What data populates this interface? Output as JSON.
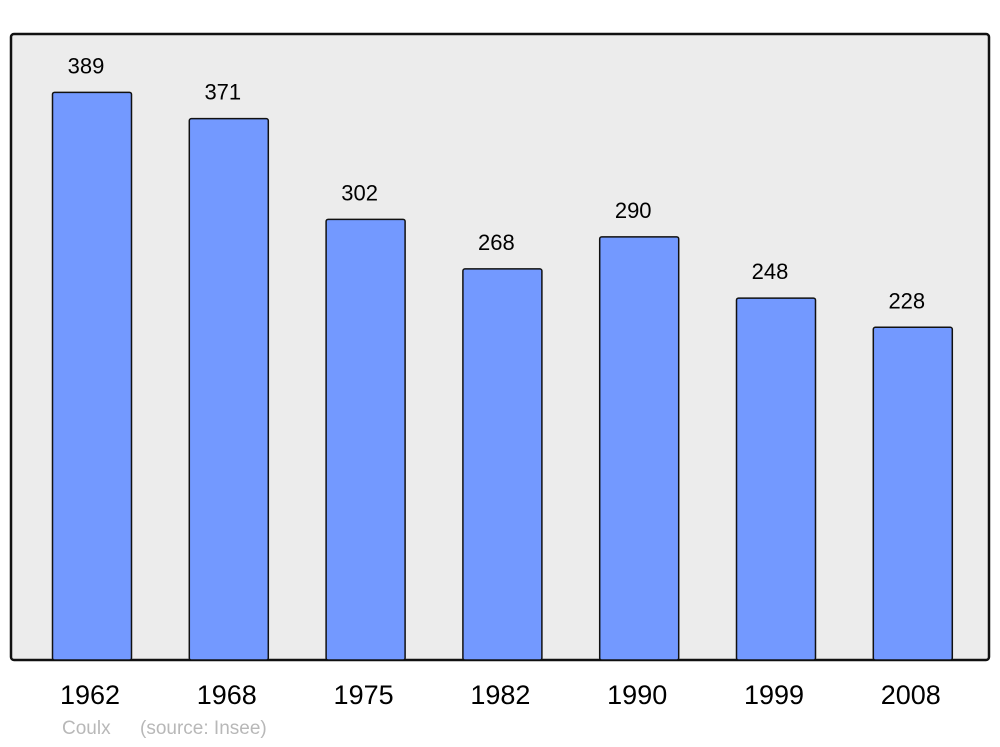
{
  "chart_data": {
    "type": "bar",
    "title": "",
    "xlabel": "",
    "ylabel": "",
    "categories": [
      "1962",
      "1968",
      "1975",
      "1982",
      "1990",
      "1999",
      "2008"
    ],
    "values": [
      389,
      371,
      302,
      268,
      290,
      248,
      228
    ],
    "ylim": [
      0,
      429
    ],
    "grid": false,
    "data_labels": true,
    "colors": {
      "bar": "#7399ff",
      "plot_background": "#ececec",
      "frame": "#000000",
      "footer_text": "#b8b8b8"
    }
  },
  "footer": {
    "place": "Coulx",
    "source": "(source: Insee)"
  }
}
